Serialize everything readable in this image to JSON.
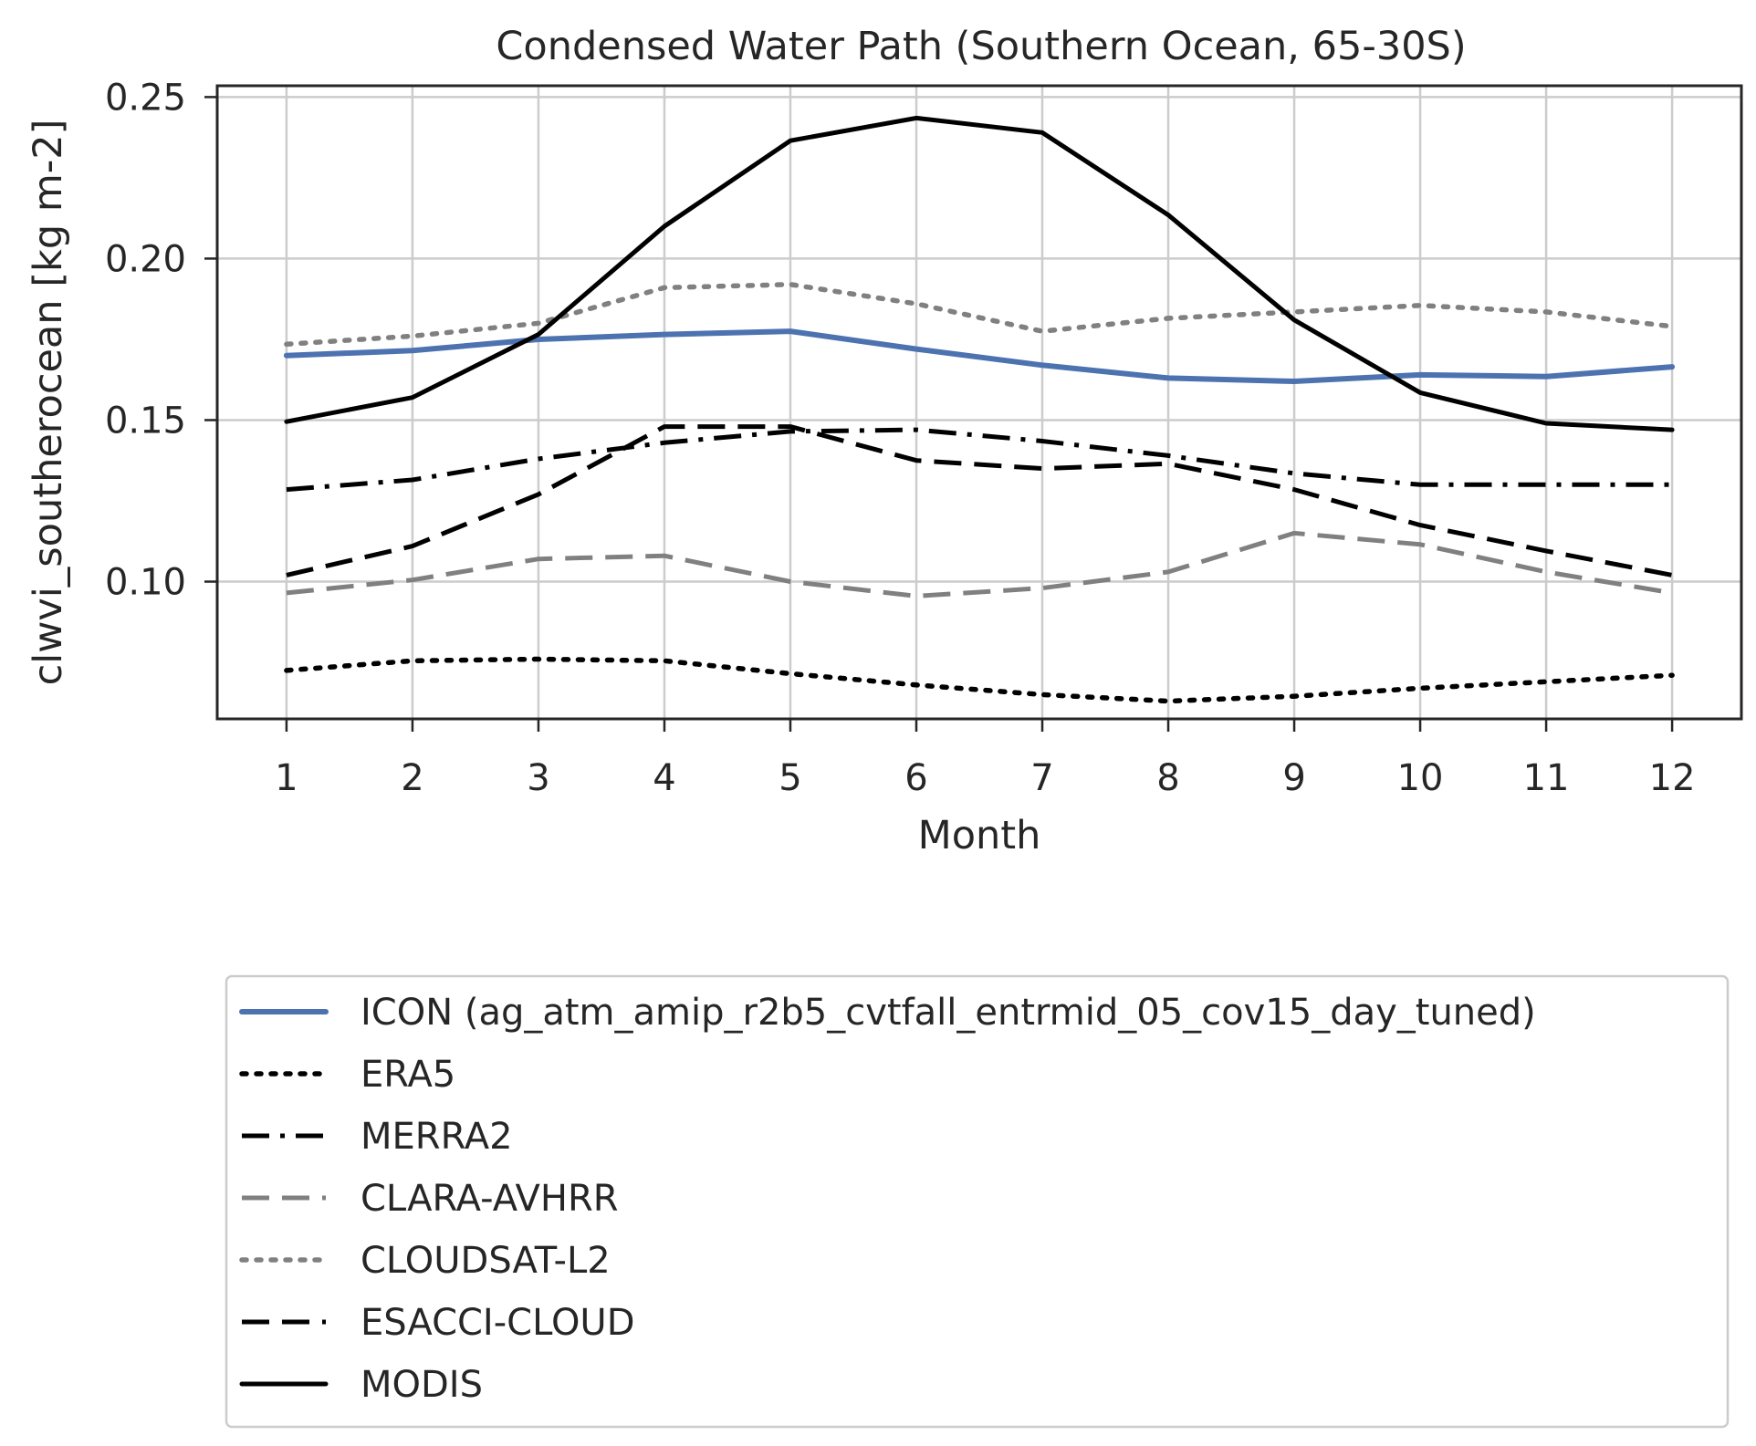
{
  "chart_data": {
    "type": "line",
    "title": "Condensed Water Path (Southern Ocean, 65-30S)",
    "xlabel": "Month",
    "ylabel": "clwvi_southerocean [kg m-2]",
    "x": [
      1,
      2,
      3,
      4,
      5,
      6,
      7,
      8,
      9,
      10,
      11,
      12
    ],
    "xticks": [
      "1",
      "2",
      "3",
      "4",
      "5",
      "6",
      "7",
      "8",
      "9",
      "10",
      "11",
      "12"
    ],
    "yticks": [
      "0.10",
      "0.15",
      "0.20",
      "0.25"
    ],
    "ytick_values": [
      0.1,
      0.15,
      0.2,
      0.25
    ],
    "xlim": [
      0.45,
      12.55
    ],
    "ylim": [
      0.0575,
      0.2535
    ],
    "grid": true,
    "legend_position": "below plot",
    "series": [
      {
        "name": "ICON (ag_atm_amip_r2b5_cvtfall_entrmid_05_cov15_day_tuned)",
        "color": "#4c72b0",
        "style": "solid-thick",
        "values": [
          0.17,
          0.1715,
          0.175,
          0.1765,
          0.1775,
          0.172,
          0.167,
          0.163,
          0.162,
          0.164,
          0.1635,
          0.1665
        ]
      },
      {
        "name": "ERA5",
        "color": "#000000",
        "style": "dotted",
        "values": [
          0.0725,
          0.0755,
          0.076,
          0.0755,
          0.0715,
          0.068,
          0.065,
          0.063,
          0.0645,
          0.067,
          0.069,
          0.071
        ]
      },
      {
        "name": "MERRA2",
        "color": "#000000",
        "style": "dashdot",
        "values": [
          0.1285,
          0.1315,
          0.138,
          0.143,
          0.1465,
          0.147,
          0.1435,
          0.139,
          0.1335,
          0.13,
          0.13,
          0.13
        ]
      },
      {
        "name": "CLARA-AVHRR",
        "color": "#808080",
        "style": "dashed",
        "values": [
          0.0965,
          0.1005,
          0.107,
          0.108,
          0.1,
          0.0955,
          0.098,
          0.103,
          0.115,
          0.1115,
          0.103,
          0.0965
        ]
      },
      {
        "name": "CLOUDSAT-L2",
        "color": "#808080",
        "style": "dotted",
        "values": [
          0.1735,
          0.176,
          0.18,
          0.191,
          0.192,
          0.186,
          0.1775,
          0.1815,
          0.1835,
          0.1855,
          0.1835,
          0.179
        ]
      },
      {
        "name": "ESACCI-CLOUD",
        "color": "#000000",
        "style": "dashed",
        "values": [
          0.102,
          0.111,
          0.127,
          0.148,
          0.148,
          0.1375,
          0.135,
          0.1365,
          0.1285,
          0.1175,
          0.1095,
          0.102
        ]
      },
      {
        "name": "MODIS",
        "color": "#000000",
        "style": "solid",
        "values": [
          0.1495,
          0.157,
          0.1765,
          0.21,
          0.2365,
          0.2435,
          0.239,
          0.2135,
          0.181,
          0.1585,
          0.149,
          0.147
        ]
      }
    ]
  }
}
